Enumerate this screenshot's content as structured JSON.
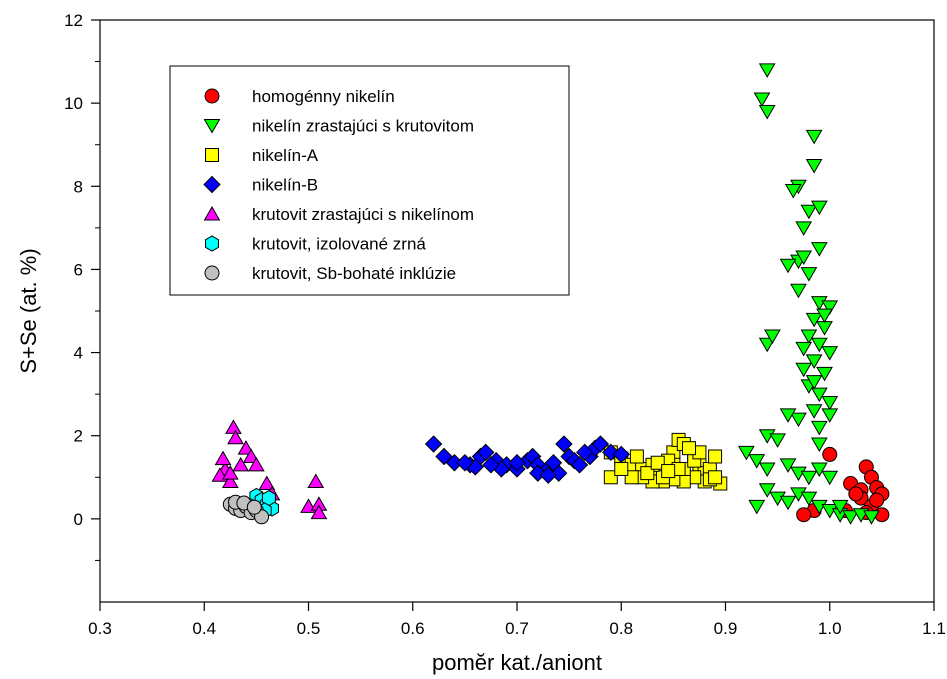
{
  "chart_data": {
    "type": "scatter",
    "title": "",
    "xlabel": "pomĕr kat./aniont",
    "ylabel": "S+Se (at. %)",
    "xlim": [
      0.3,
      1.1
    ],
    "ylim": [
      -2,
      12
    ],
    "xticks": [
      "0.3",
      "0.4",
      "0.5",
      "0.6",
      "0.7",
      "0.8",
      "0.9",
      "1.0",
      "1.1"
    ],
    "yticks": [
      "0",
      "2",
      "4",
      "6",
      "8",
      "10",
      "12"
    ],
    "grid": false,
    "legend_position": "top-left",
    "series": [
      {
        "name": "homogénny nikelín",
        "marker": "circle",
        "color": "#ff0000",
        "points": [
          [
            1.0,
            1.55
          ],
          [
            1.02,
            0.85
          ],
          [
            1.03,
            0.7
          ],
          [
            1.035,
            1.25
          ],
          [
            1.04,
            1.0
          ],
          [
            1.045,
            0.75
          ],
          [
            1.05,
            0.6
          ],
          [
            1.03,
            0.5
          ],
          [
            1.04,
            0.3
          ],
          [
            1.05,
            0.1
          ],
          [
            1.035,
            0.15
          ],
          [
            0.985,
            0.2
          ],
          [
            0.975,
            0.1
          ],
          [
            1.025,
            0.6
          ],
          [
            1.045,
            0.45
          ],
          [
            1.015,
            0.2
          ]
        ]
      },
      {
        "name": "nikelín zrastajúci s krutovitom",
        "marker": "triangle-down",
        "color": "#00ff00",
        "points": [
          [
            0.94,
            10.8
          ],
          [
            0.935,
            10.1
          ],
          [
            0.94,
            9.8
          ],
          [
            0.985,
            9.2
          ],
          [
            0.985,
            8.5
          ],
          [
            0.97,
            8.0
          ],
          [
            0.965,
            7.9
          ],
          [
            0.98,
            7.4
          ],
          [
            0.99,
            7.5
          ],
          [
            0.975,
            7.0
          ],
          [
            0.99,
            6.5
          ],
          [
            0.97,
            6.2
          ],
          [
            0.96,
            6.1
          ],
          [
            0.975,
            6.3
          ],
          [
            0.98,
            5.9
          ],
          [
            0.97,
            5.5
          ],
          [
            0.99,
            5.2
          ],
          [
            1.0,
            5.1
          ],
          [
            0.985,
            4.8
          ],
          [
            0.995,
            4.6
          ],
          [
            0.98,
            4.4
          ],
          [
            0.99,
            4.2
          ],
          [
            1.0,
            4.0
          ],
          [
            0.975,
            4.1
          ],
          [
            0.985,
            3.8
          ],
          [
            0.995,
            3.5
          ],
          [
            0.94,
            4.2
          ],
          [
            0.945,
            4.4
          ],
          [
            0.98,
            3.2
          ],
          [
            0.99,
            3.0
          ],
          [
            1.0,
            2.8
          ],
          [
            0.985,
            2.6
          ],
          [
            0.97,
            2.4
          ],
          [
            0.99,
            2.2
          ],
          [
            0.96,
            2.5
          ],
          [
            0.94,
            2.0
          ],
          [
            0.95,
            1.9
          ],
          [
            0.99,
            1.8
          ],
          [
            0.92,
            1.6
          ],
          [
            0.93,
            1.4
          ],
          [
            0.94,
            1.2
          ],
          [
            0.96,
            1.3
          ],
          [
            0.97,
            1.1
          ],
          [
            0.98,
            1.0
          ],
          [
            0.99,
            1.2
          ],
          [
            1.0,
            1.0
          ],
          [
            0.94,
            0.7
          ],
          [
            0.95,
            0.5
          ],
          [
            0.93,
            0.3
          ],
          [
            0.96,
            0.4
          ],
          [
            0.97,
            0.6
          ],
          [
            0.98,
            0.5
          ],
          [
            0.99,
            0.3
          ],
          [
            1.0,
            0.2
          ],
          [
            1.01,
            0.1
          ],
          [
            1.02,
            0.05
          ],
          [
            1.03,
            0.1
          ],
          [
            1.04,
            0.05
          ],
          [
            1.01,
            0.3
          ],
          [
            0.985,
            3.3
          ],
          [
            0.975,
            3.6
          ],
          [
            0.995,
            4.9
          ],
          [
            1.0,
            2.5
          ]
        ]
      },
      {
        "name": "nikelín-A",
        "marker": "square",
        "color": "#ffff00",
        "points": [
          [
            0.79,
            1.6
          ],
          [
            0.8,
            1.45
          ],
          [
            0.81,
            1.3
          ],
          [
            0.82,
            1.2
          ],
          [
            0.83,
            1.1
          ],
          [
            0.84,
            1.3
          ],
          [
            0.85,
            1.6
          ],
          [
            0.855,
            1.9
          ],
          [
            0.86,
            1.8
          ],
          [
            0.87,
            1.5
          ],
          [
            0.875,
            1.3
          ],
          [
            0.88,
            1.1
          ],
          [
            0.885,
            1.2
          ],
          [
            0.89,
            1.5
          ],
          [
            0.895,
            0.85
          ],
          [
            0.88,
            0.9
          ],
          [
            0.87,
            1.0
          ],
          [
            0.86,
            0.9
          ],
          [
            0.85,
            0.95
          ],
          [
            0.84,
            0.9
          ],
          [
            0.83,
            0.9
          ],
          [
            0.82,
            1.0
          ],
          [
            0.81,
            1.0
          ],
          [
            0.79,
            1.0
          ],
          [
            0.86,
            1.2
          ],
          [
            0.85,
            1.3
          ],
          [
            0.84,
            1.0
          ],
          [
            0.83,
            1.3
          ],
          [
            0.87,
            1.4
          ],
          [
            0.875,
            1.6
          ],
          [
            0.865,
            1.7
          ],
          [
            0.845,
            1.4
          ],
          [
            0.855,
            1.2
          ],
          [
            0.885,
            0.95
          ],
          [
            0.89,
            1.0
          ],
          [
            0.8,
            1.2
          ],
          [
            0.815,
            1.5
          ],
          [
            0.825,
            1.1
          ],
          [
            0.835,
            1.35
          ],
          [
            0.845,
            1.15
          ]
        ]
      },
      {
        "name": "nikelín-B",
        "marker": "diamond",
        "color": "#0000ff",
        "points": [
          [
            0.62,
            1.8
          ],
          [
            0.63,
            1.5
          ],
          [
            0.64,
            1.35
          ],
          [
            0.655,
            1.3
          ],
          [
            0.665,
            1.5
          ],
          [
            0.67,
            1.6
          ],
          [
            0.68,
            1.4
          ],
          [
            0.69,
            1.3
          ],
          [
            0.7,
            1.2
          ],
          [
            0.71,
            1.4
          ],
          [
            0.715,
            1.5
          ],
          [
            0.72,
            1.3
          ],
          [
            0.73,
            1.2
          ],
          [
            0.74,
            1.1
          ],
          [
            0.745,
            1.8
          ],
          [
            0.75,
            1.5
          ],
          [
            0.755,
            1.4
          ],
          [
            0.76,
            1.3
          ],
          [
            0.77,
            1.5
          ],
          [
            0.775,
            1.7
          ],
          [
            0.78,
            1.8
          ],
          [
            0.79,
            1.6
          ],
          [
            0.8,
            1.55
          ],
          [
            0.72,
            1.1
          ],
          [
            0.73,
            1.05
          ],
          [
            0.7,
            1.35
          ],
          [
            0.685,
            1.2
          ],
          [
            0.675,
            1.3
          ],
          [
            0.66,
            1.25
          ],
          [
            0.65,
            1.35
          ],
          [
            0.765,
            1.6
          ],
          [
            0.735,
            1.35
          ]
        ]
      },
      {
        "name": "krutovit zrastajúci s nikelínom",
        "marker": "triangle-up",
        "color": "#ff00ff",
        "points": [
          [
            0.428,
            2.2
          ],
          [
            0.43,
            1.95
          ],
          [
            0.44,
            1.7
          ],
          [
            0.445,
            1.5
          ],
          [
            0.435,
            1.3
          ],
          [
            0.42,
            1.2
          ],
          [
            0.415,
            1.05
          ],
          [
            0.425,
            0.9
          ],
          [
            0.45,
            1.3
          ],
          [
            0.46,
            0.85
          ],
          [
            0.465,
            0.6
          ],
          [
            0.5,
            0.3
          ],
          [
            0.51,
            0.35
          ],
          [
            0.51,
            0.15
          ],
          [
            0.507,
            0.9
          ],
          [
            0.418,
            1.45
          ],
          [
            0.425,
            1.1
          ]
        ]
      },
      {
        "name": "krutovit, izolované zrná",
        "marker": "hexagon",
        "color": "#00ffff",
        "points": [
          [
            0.45,
            0.55
          ],
          [
            0.455,
            0.45
          ],
          [
            0.46,
            0.35
          ],
          [
            0.465,
            0.25
          ],
          [
            0.445,
            0.3
          ],
          [
            0.462,
            0.5
          ],
          [
            0.458,
            0.2
          ]
        ]
      },
      {
        "name": "krutovit, Sb-bohaté inklúzie",
        "marker": "circle",
        "color": "#c0c0c0",
        "points": [
          [
            0.425,
            0.35
          ],
          [
            0.43,
            0.25
          ],
          [
            0.435,
            0.2
          ],
          [
            0.44,
            0.3
          ],
          [
            0.445,
            0.15
          ],
          [
            0.45,
            0.2
          ],
          [
            0.455,
            0.05
          ],
          [
            0.43,
            0.4
          ],
          [
            0.438,
            0.38
          ],
          [
            0.448,
            0.28
          ]
        ]
      }
    ]
  }
}
